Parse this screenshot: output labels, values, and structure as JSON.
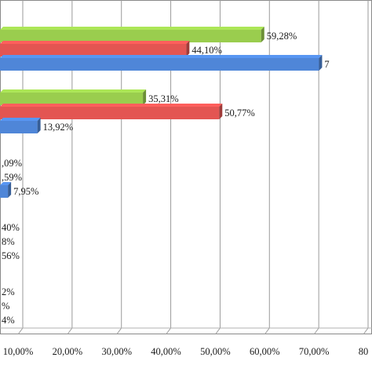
{
  "chart_data": {
    "type": "bar",
    "orientation": "horizontal",
    "render_3d": true,
    "grid": true,
    "x_axis": {
      "tick_values": [
        0.1,
        0.2,
        0.3,
        0.4,
        0.5,
        0.6,
        0.7,
        0.8
      ],
      "tick_labels": [
        "10,00%",
        "20,00%",
        "30,00%",
        "40,00%",
        "50,00%",
        "60,00%",
        "70,00%",
        "80"
      ]
    },
    "series_colors": [
      "#9ACD4E",
      "#E35552",
      "#4F86D8"
    ],
    "groups": [
      {
        "bars": [
          {
            "series": 0,
            "value": 0.5928,
            "label": "59,28%"
          },
          {
            "series": 1,
            "value": 0.441,
            "label": "44,10%"
          },
          {
            "series": 2,
            "value": 0.71,
            "label": "7"
          }
        ]
      },
      {
        "bars": [
          {
            "series": 0,
            "value": 0.3531,
            "label": "35,31%"
          },
          {
            "series": 1,
            "value": 0.5077,
            "label": "50,77%"
          },
          {
            "series": 2,
            "value": 0.1392,
            "label": "13,92%"
          }
        ]
      },
      {
        "bars": [
          {
            "series": 0,
            "value": 0.01,
            "label": ",09%"
          },
          {
            "series": 1,
            "value": 0.01,
            "label": ",59%"
          },
          {
            "series": 2,
            "value": 0.0795,
            "label": "7,95%"
          }
        ]
      },
      {
        "bars": [
          {
            "series": 0,
            "value": 0.01,
            "label": "40%"
          },
          {
            "series": 1,
            "value": 0.01,
            "label": "8%"
          },
          {
            "series": 2,
            "value": 0.01,
            "label": "56%"
          }
        ]
      },
      {
        "bars": [
          {
            "series": 0,
            "value": 0.01,
            "label": "2%"
          },
          {
            "series": 1,
            "value": 0.01,
            "label": "%"
          },
          {
            "series": 2,
            "value": 0.01,
            "label": "4%"
          }
        ]
      }
    ]
  }
}
